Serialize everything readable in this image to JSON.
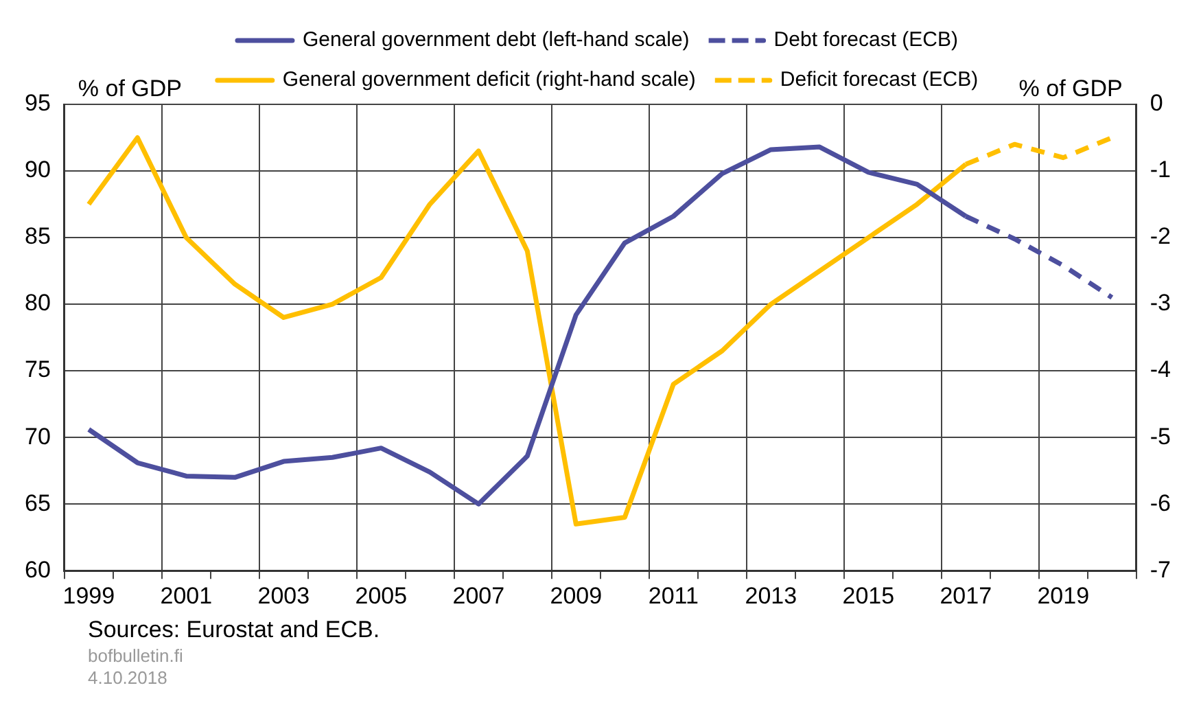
{
  "chart_data": {
    "type": "line",
    "categories": [
      "1999",
      null,
      "2001",
      null,
      "2003",
      null,
      "2005",
      null,
      "2007",
      null,
      "2009",
      null,
      "2011",
      null,
      "2013",
      null,
      "2015",
      null,
      "2017",
      null,
      "2019",
      null
    ],
    "series": [
      {
        "name": "General government debt (left-hand scale)",
        "color": "#4d4f9e",
        "axis": "y",
        "line_style": "solid",
        "values": [
          70.6,
          68.1,
          67.1,
          67.0,
          68.2,
          68.5,
          69.2,
          67.4,
          65.0,
          68.6,
          79.2,
          84.6,
          86.6,
          89.8,
          91.6,
          91.8,
          89.9,
          89.0,
          86.6,
          null,
          null,
          null
        ]
      },
      {
        "name": "Debt forecast (ECB)",
        "color": "#4d4f9e",
        "axis": "y",
        "line_style": "dashed",
        "values": [
          null,
          null,
          null,
          null,
          null,
          null,
          null,
          null,
          null,
          null,
          null,
          null,
          null,
          null,
          null,
          null,
          null,
          null,
          86.6,
          84.9,
          82.9,
          80.5
        ]
      },
      {
        "name": "General government deficit (right-hand scale)",
        "color": "#ffbf00",
        "axis": "y2",
        "line_style": "solid",
        "values": [
          -1.5,
          -0.5,
          -2.0,
          -2.7,
          -3.2,
          -3.0,
          -2.6,
          -1.5,
          -0.7,
          -2.2,
          -6.3,
          -6.2,
          -4.2,
          -3.7,
          -3.0,
          -2.5,
          -2.0,
          -1.5,
          -0.9,
          null,
          null,
          null
        ]
      },
      {
        "name": "Deficit forecast (ECB)",
        "color": "#ffbf00",
        "axis": "y2",
        "line_style": "dashed",
        "values": [
          null,
          null,
          null,
          null,
          null,
          null,
          null,
          null,
          null,
          null,
          null,
          null,
          null,
          null,
          null,
          null,
          null,
          null,
          -0.9,
          -0.6,
          -0.8,
          -0.5
        ]
      }
    ],
    "ylabel": "% of GDP",
    "y2label": "% of GDP",
    "ylim": [
      60,
      95
    ],
    "yticks": [
      60,
      65,
      70,
      75,
      80,
      85,
      90,
      95
    ],
    "y2lim": [
      -7,
      0
    ],
    "y2ticks": [
      -7,
      -6,
      -5,
      -4,
      -3,
      -2,
      -1,
      0
    ],
    "grid": true,
    "legend": "top",
    "marker": "none",
    "annotations": [
      "Sources: Eurostat and ECB.",
      "bofbulletin.fi",
      "4.10.2018"
    ]
  }
}
